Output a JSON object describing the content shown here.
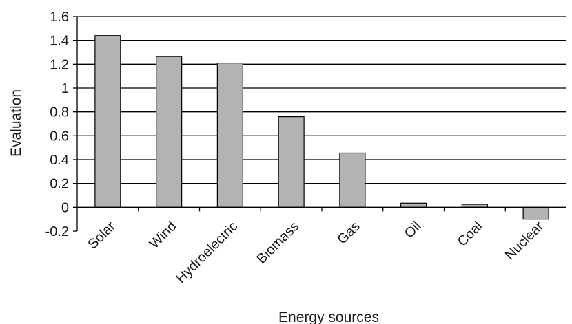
{
  "chart_data": {
    "type": "bar",
    "categories": [
      "Solar",
      "Wind",
      "Hydroelectric",
      "Biomass",
      "Gas",
      "Oil",
      "Coal",
      "Nuclear"
    ],
    "values": [
      1.44,
      1.265,
      1.21,
      0.76,
      0.455,
      0.035,
      0.025,
      -0.1
    ],
    "xlabel": "Energy sources",
    "ylabel": "Evaluation",
    "ylim": [
      -0.2,
      1.6
    ],
    "yticks": [
      -0.2,
      0,
      0.2,
      0.4,
      0.6,
      0.8,
      1,
      1.2,
      1.4,
      1.6
    ],
    "ytick_labels": [
      "-0.2",
      "0",
      "0.2",
      "0.4",
      "0.6",
      "0.8",
      "1",
      "1.2",
      "1.4",
      "1.6"
    ],
    "grid": true,
    "legend": "none",
    "bar_color": "#b3b3b3"
  }
}
